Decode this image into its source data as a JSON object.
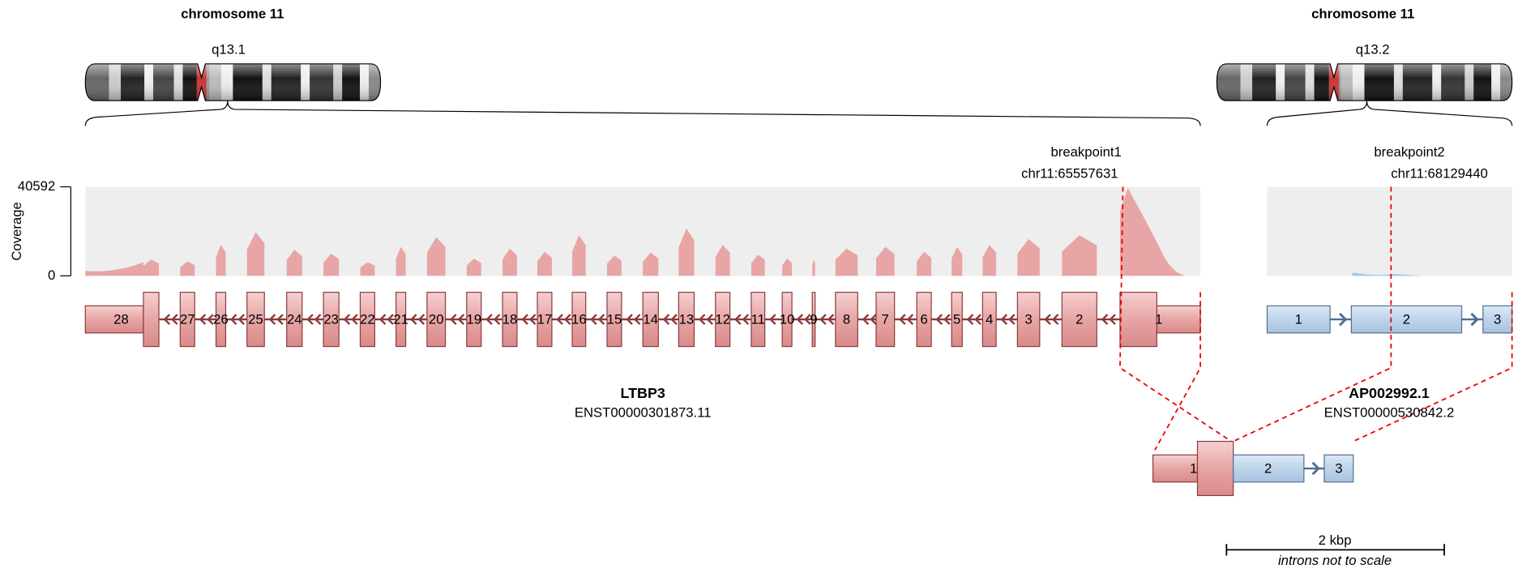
{
  "chromosomes": [
    {
      "title": "chromosome 11",
      "band": "q13.1"
    },
    {
      "title": "chromosome 11",
      "band": "q13.2"
    }
  ],
  "breakpoints": [
    {
      "name": "breakpoint1",
      "position": "chr11:65557631"
    },
    {
      "name": "breakpoint2",
      "position": "chr11:68129440"
    }
  ],
  "coverage": {
    "label": "Coverage",
    "ylim": [
      0,
      40592
    ],
    "yticks": [
      0,
      40592
    ],
    "gene1": [
      7500,
      6600,
      14100,
      19900,
      11900,
      10100,
      6200,
      13200,
      17600,
      7900,
      12400,
      11000,
      18500,
      9300,
      10600,
      21600,
      14100,
      9700,
      7900,
      7500,
      12400,
      13200,
      11000,
      13200,
      14100,
      16800,
      18500,
      40000
    ],
    "gene2": [
      1500
    ]
  },
  "genes": [
    {
      "name": "LTBP3",
      "transcript": "ENST00000301873.11",
      "exons": [
        "28",
        "27",
        "26",
        "25",
        "24",
        "23",
        "22",
        "21",
        "20",
        "19",
        "18",
        "17",
        "16",
        "15",
        "14",
        "13",
        "12",
        "11",
        "10",
        "9",
        "8",
        "7",
        "6",
        "5",
        "4",
        "3",
        "2",
        "1"
      ]
    },
    {
      "name": "AP002992.1",
      "transcript": "ENST00000530842.2",
      "exons": [
        "1",
        "2",
        "3"
      ]
    }
  ],
  "fusion": {
    "exons": [
      "1",
      "2",
      "3"
    ]
  },
  "scale": {
    "label": "2 kbp",
    "note": "introns not to scale"
  }
}
